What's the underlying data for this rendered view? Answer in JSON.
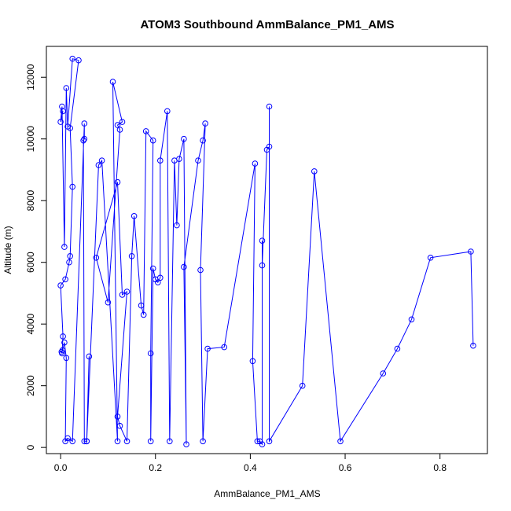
{
  "chart_data": {
    "type": "line",
    "title": "ATOM3 Southbound AmmBalance_PM1_AMS",
    "xlabel": "AmmBalance_PM1_AMS",
    "ylabel": "Altitude (m)",
    "xlim": [
      -0.03,
      0.9
    ],
    "ylim": [
      -200,
      13000
    ],
    "xticks": [
      0.0,
      0.2,
      0.4,
      0.6,
      0.8
    ],
    "xtick_labels": [
      "0.0",
      "0.2",
      "0.4",
      "0.6",
      "0.8"
    ],
    "yticks": [
      0,
      2000,
      4000,
      6000,
      8000,
      10000,
      12000
    ],
    "ytick_labels": [
      "0",
      "2000",
      "4000",
      "6000",
      "8000",
      "10000",
      "12000"
    ],
    "grid": false,
    "legend": "none",
    "series_color": "#0000ff",
    "points": [
      [
        0.005,
        10900
      ],
      [
        0.0,
        10550
      ],
      [
        0.003,
        11050
      ],
      [
        0.008,
        6500
      ],
      [
        0.012,
        11650
      ],
      [
        0.015,
        10400
      ],
      [
        0.025,
        12600
      ],
      [
        0.038,
        12550
      ],
      [
        0.02,
        10350
      ],
      [
        0.025,
        8450
      ],
      [
        0.02,
        6200
      ],
      [
        0.018,
        6000
      ],
      [
        0.01,
        5450
      ],
      [
        0.0,
        5250
      ],
      [
        0.005,
        3600
      ],
      [
        0.003,
        3050
      ],
      [
        0.002,
        3100
      ],
      [
        0.004,
        3150
      ],
      [
        0.008,
        3400
      ],
      [
        0.012,
        2900
      ],
      [
        0.01,
        200
      ],
      [
        0.015,
        300
      ],
      [
        0.025,
        200
      ],
      [
        0.05,
        10500
      ],
      [
        0.05,
        10000
      ],
      [
        0.048,
        9950
      ],
      [
        0.05,
        200
      ],
      [
        0.055,
        200
      ],
      [
        0.06,
        2950
      ],
      [
        0.055,
        200
      ],
      [
        0.08,
        9150
      ],
      [
        0.087,
        9300
      ],
      [
        0.12,
        200
      ],
      [
        0.11,
        11850
      ],
      [
        0.13,
        10550
      ],
      [
        0.12,
        10450
      ],
      [
        0.125,
        10300
      ],
      [
        0.1,
        4700
      ],
      [
        0.075,
        6150
      ],
      [
        0.12,
        8600
      ],
      [
        0.13,
        4950
      ],
      [
        0.14,
        5050
      ],
      [
        0.12,
        1000
      ],
      [
        0.125,
        700
      ],
      [
        0.14,
        200
      ],
      [
        0.15,
        6200
      ],
      [
        0.155,
        7500
      ],
      [
        0.17,
        4600
      ],
      [
        0.175,
        4300
      ],
      [
        0.18,
        10250
      ],
      [
        0.195,
        9950
      ],
      [
        0.19,
        3050
      ],
      [
        0.19,
        200
      ],
      [
        0.195,
        5800
      ],
      [
        0.2,
        5450
      ],
      [
        0.205,
        5350
      ],
      [
        0.21,
        5500
      ],
      [
        0.21,
        9300
      ],
      [
        0.225,
        10900
      ],
      [
        0.23,
        200
      ],
      [
        0.24,
        9300
      ],
      [
        0.245,
        7200
      ],
      [
        0.25,
        9350
      ],
      [
        0.26,
        10000
      ],
      [
        0.265,
        100
      ],
      [
        0.26,
        5850
      ],
      [
        0.29,
        9300
      ],
      [
        0.3,
        9950
      ],
      [
        0.305,
        10500
      ],
      [
        0.295,
        5750
      ],
      [
        0.3,
        200
      ],
      [
        0.31,
        3200
      ],
      [
        0.345,
        3250
      ],
      [
        0.41,
        9200
      ],
      [
        0.405,
        2800
      ],
      [
        0.415,
        200
      ],
      [
        0.42,
        200
      ],
      [
        0.425,
        100
      ],
      [
        0.425,
        6700
      ],
      [
        0.425,
        5900
      ],
      [
        0.435,
        9650
      ],
      [
        0.44,
        9750
      ],
      [
        0.44,
        11050
      ],
      [
        0.44,
        200
      ],
      [
        0.51,
        2000
      ],
      [
        0.535,
        8950
      ],
      [
        0.59,
        200
      ],
      [
        0.68,
        2400
      ],
      [
        0.71,
        3200
      ],
      [
        0.74,
        4150
      ],
      [
        0.78,
        6150
      ],
      [
        0.865,
        6350
      ],
      [
        0.87,
        3300
      ]
    ]
  }
}
